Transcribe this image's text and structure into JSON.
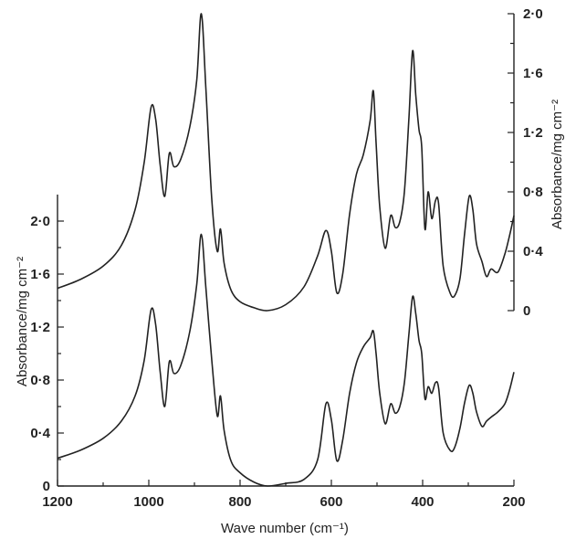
{
  "chart_data": {
    "type": "line",
    "title": "",
    "xlabel": "Wave number (cm⁻¹)",
    "x_ticks": [
      "1200",
      "1000",
      "800",
      "600",
      "400",
      "200"
    ],
    "xlim": [
      1200,
      200
    ],
    "y_left": {
      "label": "Absorbance/mg cm⁻²",
      "ylim": [
        0,
        2.2
      ],
      "ticks": [
        "0",
        "0·4",
        "0·8",
        "1·2",
        "1·6",
        "2·0"
      ]
    },
    "y_right": {
      "label": "Absorbance/mg cm⁻²",
      "ylim": [
        0,
        2.0
      ],
      "ticks": [
        "0",
        "0·4",
        "0·8",
        "1·2",
        "1·6",
        "2·0"
      ]
    },
    "grid": false,
    "series": [
      {
        "axis": "right",
        "x": [
          1200,
          1150,
          1100,
          1060,
          1030,
          1010,
          995,
          985,
          975,
          965,
          955,
          945,
          930,
          910,
          895,
          885,
          875,
          862,
          850,
          843,
          835,
          820,
          800,
          770,
          740,
          700,
          660,
          630,
          612,
          600,
          588,
          575,
          560,
          545,
          530,
          515,
          508,
          502,
          494,
          482,
          470,
          460,
          450,
          440,
          430,
          422,
          415,
          408,
          402,
          395,
          388,
          380,
          372,
          365,
          355,
          340,
          330,
          318,
          308,
          298,
          290,
          282,
          270,
          260,
          250,
          235,
          220,
          210,
          200
        ],
        "values": [
          0.15,
          0.21,
          0.3,
          0.44,
          0.68,
          1.0,
          1.37,
          1.29,
          0.98,
          0.77,
          1.06,
          0.97,
          1.02,
          1.24,
          1.55,
          2.0,
          1.5,
          0.75,
          0.4,
          0.55,
          0.32,
          0.14,
          0.06,
          0.02,
          0.0,
          0.04,
          0.16,
          0.37,
          0.54,
          0.4,
          0.12,
          0.25,
          0.65,
          0.92,
          1.05,
          1.28,
          1.48,
          1.13,
          0.7,
          0.42,
          0.64,
          0.56,
          0.6,
          0.8,
          1.3,
          1.75,
          1.45,
          1.22,
          1.1,
          0.55,
          0.8,
          0.62,
          0.74,
          0.72,
          0.3,
          0.12,
          0.1,
          0.22,
          0.52,
          0.77,
          0.68,
          0.45,
          0.33,
          0.23,
          0.28,
          0.26,
          0.38,
          0.5,
          0.64
        ]
      },
      {
        "axis": "left",
        "x": [
          1200,
          1150,
          1100,
          1060,
          1030,
          1010,
          995,
          985,
          975,
          965,
          955,
          945,
          930,
          910,
          895,
          885,
          875,
          862,
          850,
          843,
          835,
          820,
          800,
          770,
          740,
          700,
          660,
          630,
          612,
          600,
          588,
          575,
          560,
          545,
          530,
          515,
          508,
          502,
          494,
          482,
          470,
          460,
          450,
          440,
          430,
          422,
          415,
          408,
          402,
          395,
          388,
          380,
          372,
          365,
          355,
          340,
          330,
          318,
          308,
          298,
          290,
          282,
          270,
          260,
          250,
          235,
          220,
          210,
          200
        ],
        "values": [
          0.21,
          0.27,
          0.36,
          0.49,
          0.68,
          0.95,
          1.33,
          1.22,
          0.86,
          0.6,
          0.94,
          0.85,
          0.91,
          1.17,
          1.52,
          1.9,
          1.5,
          0.95,
          0.53,
          0.68,
          0.42,
          0.19,
          0.1,
          0.03,
          0.0,
          0.02,
          0.05,
          0.2,
          0.62,
          0.5,
          0.19,
          0.35,
          0.7,
          0.93,
          1.05,
          1.12,
          1.17,
          1.0,
          0.7,
          0.47,
          0.62,
          0.55,
          0.6,
          0.78,
          1.15,
          1.43,
          1.3,
          1.1,
          1.0,
          0.66,
          0.75,
          0.7,
          0.78,
          0.74,
          0.4,
          0.27,
          0.29,
          0.44,
          0.63,
          0.76,
          0.7,
          0.56,
          0.45,
          0.49,
          0.52,
          0.56,
          0.62,
          0.72,
          0.86
        ]
      }
    ]
  }
}
